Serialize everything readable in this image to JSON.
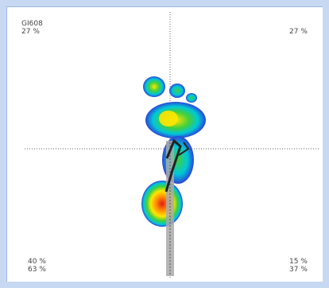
{
  "panel": {
    "id_label": "GI608",
    "top_left_pct": "27 %",
    "top_right_pct": "27 %",
    "bottom_left_pct_1": "40 %",
    "bottom_left_pct_2": "63 %",
    "bottom_right_pct_1": "15 %",
    "bottom_right_pct_2": "37 %"
  },
  "colors": {
    "high": "#e41a1a",
    "upper_mid": "#ffe600",
    "mid": "#3fcf3f",
    "lower_mid": "#00c8d8",
    "low": "#2b46d6",
    "axis_bar": "#a9a9a9"
  },
  "icons": {
    "pressure_map": "foot-pressure-heatmap-icon"
  }
}
